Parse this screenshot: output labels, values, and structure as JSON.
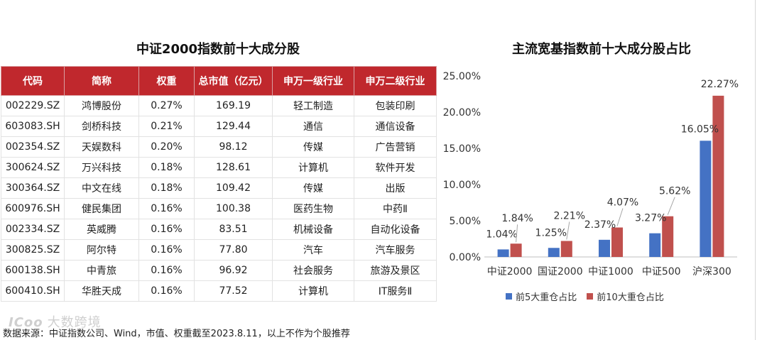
{
  "table": {
    "title": "中证2000指数前十大成分股",
    "headers": [
      "代码",
      "简称",
      "权重",
      "总市值（亿元）",
      "申万一级行业",
      "申万二级行业"
    ],
    "rows": [
      [
        "002229.SZ",
        "鸿博股份",
        "0.27%",
        "169.19",
        "轻工制造",
        "包装印刷"
      ],
      [
        "603083.SH",
        "剑桥科技",
        "0.21%",
        "129.44",
        "通信",
        "通信设备"
      ],
      [
        "002354.SZ",
        "天娱数科",
        "0.20%",
        "98.12",
        "传媒",
        "广告营销"
      ],
      [
        "300624.SZ",
        "万兴科技",
        "0.18%",
        "128.61",
        "计算机",
        "软件开发"
      ],
      [
        "300364.SZ",
        "中文在线",
        "0.18%",
        "109.42",
        "传媒",
        "出版"
      ],
      [
        "600976.SH",
        "健民集团",
        "0.16%",
        "100.38",
        "医药生物",
        "中药Ⅱ"
      ],
      [
        "002334.SZ",
        "英威腾",
        "0.16%",
        "83.51",
        "机械设备",
        "自动化设备"
      ],
      [
        "300825.SZ",
        "阿尔特",
        "0.16%",
        "77.80",
        "汽车",
        "汽车服务"
      ],
      [
        "600138.SH",
        "中青旅",
        "0.16%",
        "96.92",
        "社会服务",
        "旅游及景区"
      ],
      [
        "600410.SH",
        "华胜天成",
        "0.16%",
        "77.52",
        "计算机",
        "IT服务Ⅱ"
      ]
    ]
  },
  "footnote": "数据来源：中证指数公司、Wind，市值、权重截至2023.8.11，以上不作为个股推荐",
  "watermark": {
    "logo": "ICoo",
    "text": "大数跨境"
  },
  "chart_data": {
    "type": "bar",
    "title": "主流宽基指数前十大成分股占比",
    "categories": [
      "中证2000",
      "国证2000",
      "中证1000",
      "中证500",
      "沪深300"
    ],
    "series": [
      {
        "name": "前5大重仓占比",
        "values": [
          1.04,
          1.25,
          2.37,
          3.27,
          16.05
        ],
        "labels": [
          "1.04%",
          "1.25%",
          "2.37%",
          "3.27%",
          "16.05%"
        ],
        "color": "#4472c4"
      },
      {
        "name": "前10大重仓占比",
        "values": [
          1.84,
          2.21,
          4.07,
          5.62,
          22.27
        ],
        "labels": [
          "1.84%",
          "2.21%",
          "4.07%",
          "5.62%",
          "22.27%"
        ],
        "color": "#c0504d"
      }
    ],
    "ylim": [
      0,
      25
    ],
    "yticks": [
      "0.00%",
      "5.00%",
      "10.00%",
      "15.00%",
      "20.00%",
      "25.00%"
    ],
    "grid": false,
    "legend": "bottom"
  }
}
